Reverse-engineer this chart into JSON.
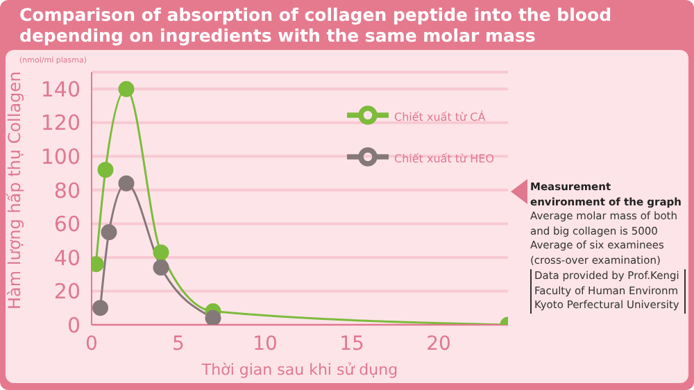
{
  "chart_data": {
    "type": "line",
    "title": "Comparison of absorption of collagen peptide into the blood depending on ingredients with the same molar mass",
    "xlabel": "Thời gian sau khi sử dụng",
    "ylabel": "Hàm lượng hấp thụ Collagen",
    "annotations": [
      "(nmol/ml plasma)",
      "Measurement environment of the graph",
      "Average molar mass of both and big collagen is 5000",
      "Average of six examinees (cross-over examination)",
      "Data provided by Prof.Kengi Faculty of Human Environm Kyoto Perfectural University"
    ],
    "series": [
      {
        "name": "Chiết xuất từ CÁ",
        "color": "#7dbb3c",
        "x": [
          0.25,
          0.8,
          2,
          4,
          7,
          24
        ],
        "values": [
          36,
          92,
          140,
          43,
          8,
          0
        ]
      },
      {
        "name": "Chiết xuất từ HEO",
        "color": "#857878",
        "x": [
          0.5,
          1,
          2,
          4,
          7
        ],
        "values": [
          10,
          55,
          84,
          34,
          4
        ]
      }
    ],
    "xlim": [
      0,
      24
    ],
    "xticks": [
      0,
      5,
      10,
      15,
      20
    ],
    "ylim": [
      0,
      150
    ],
    "yticks": [
      0,
      20,
      40,
      60,
      80,
      100,
      120,
      140
    ],
    "grid": "y",
    "legend": "top right",
    "marker": "circle",
    "line_style": "solid"
  }
}
